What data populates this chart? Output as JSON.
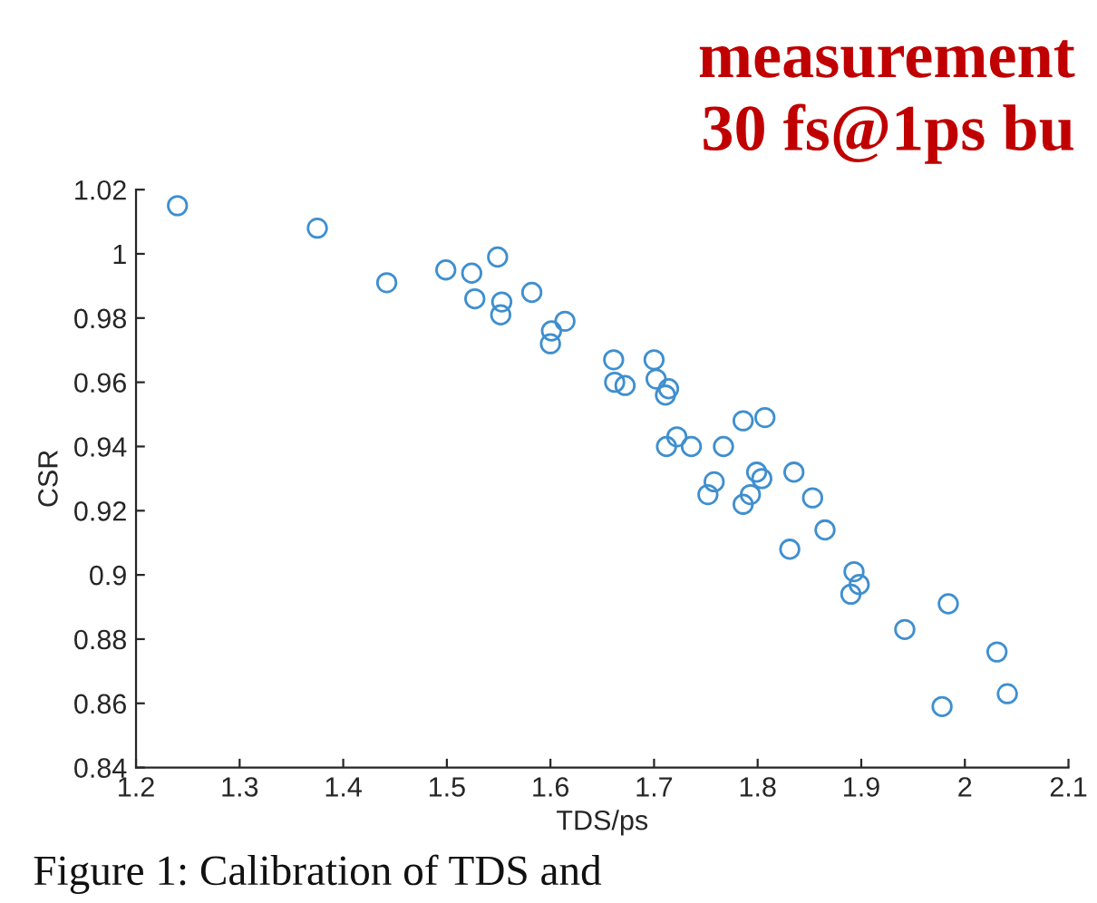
{
  "chart_data": {
    "type": "scatter",
    "xlabel": "TDS/ps",
    "ylabel": "CSR",
    "annotations": [
      "measurement",
      "30 fs@1ps bu",
      "Figure 1: Calibration of TDS and"
    ],
    "x": [
      1.24,
      1.375,
      1.442,
      1.499,
      1.524,
      1.527,
      1.549,
      1.553,
      1.552,
      1.582,
      1.601,
      1.6,
      1.614,
      1.661,
      1.662,
      1.672,
      1.7,
      1.702,
      1.714,
      1.711,
      1.722,
      1.712,
      1.736,
      1.767,
      1.786,
      1.807,
      1.752,
      1.758,
      1.793,
      1.786,
      1.799,
      1.804,
      1.835,
      1.853,
      1.865,
      1.831,
      1.893,
      1.898,
      1.89,
      1.942,
      1.984,
      2.031,
      2.041,
      1.978
    ],
    "series": [
      {
        "color": "#3f8fcf",
        "values": [
          1.015,
          1.008,
          0.991,
          0.995,
          0.994,
          0.986,
          0.999,
          0.985,
          0.981,
          0.988,
          0.976,
          0.972,
          0.979,
          0.967,
          0.96,
          0.959,
          0.967,
          0.961,
          0.958,
          0.956,
          0.943,
          0.94,
          0.94,
          0.94,
          0.948,
          0.949,
          0.925,
          0.929,
          0.925,
          0.922,
          0.932,
          0.93,
          0.932,
          0.924,
          0.914,
          0.908,
          0.901,
          0.897,
          0.894,
          0.883,
          0.891,
          0.876,
          0.863,
          0.859
        ]
      }
    ],
    "marker": "circle",
    "grid": false,
    "xlim": [
      1.2,
      2.1
    ],
    "xticks": [
      1.2,
      1.3,
      1.4,
      1.5,
      1.6,
      1.7,
      1.8,
      1.9,
      2,
      2.1
    ],
    "ylim": [
      0.84,
      1.02
    ],
    "yticks": [
      0.84,
      0.86,
      0.88,
      0.9,
      0.92,
      0.94,
      0.96,
      0.98,
      1,
      1.02
    ]
  }
}
